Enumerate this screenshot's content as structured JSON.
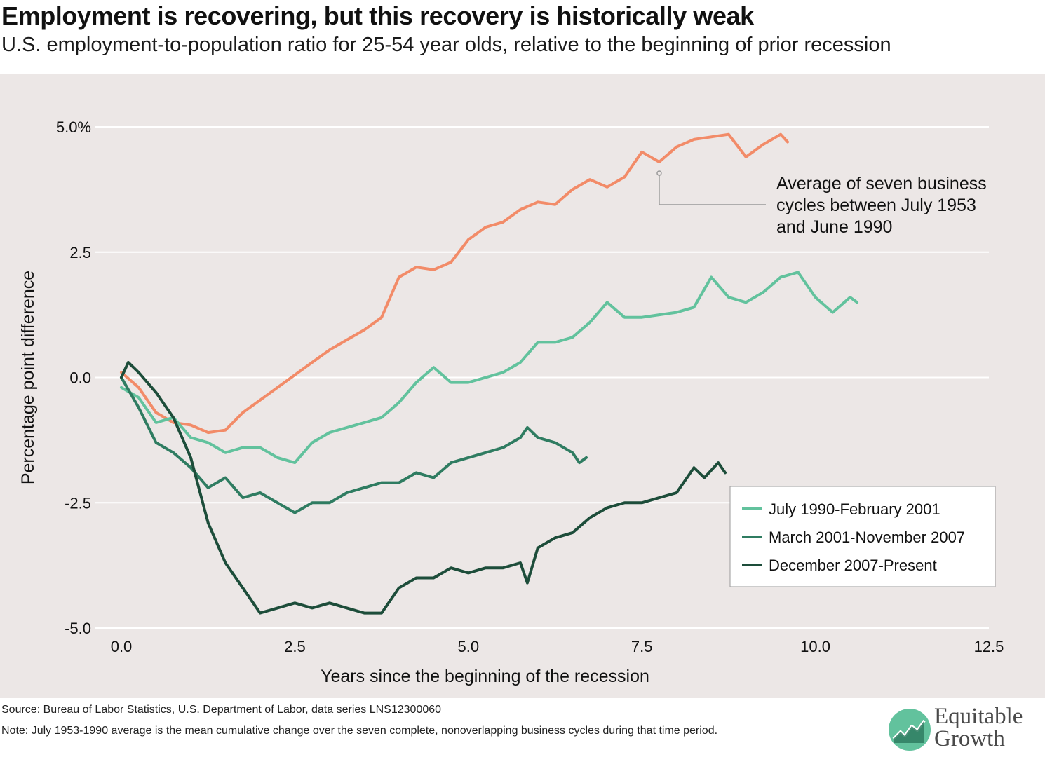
{
  "title": "Employment is recovering, but this recovery is historically weak",
  "subtitle": "U.S. employment-to-population ratio for 25-54 year olds, relative to the beginning of prior recession",
  "source": "Source: Bureau of Labor Statistics, U.S. Department of Labor, data series LNS12300060",
  "note": "Note: July 1953-1990 average is the mean cumulative change over the seven complete, nonoverlapping business cycles during that time period.",
  "logo": {
    "line1": "Equitable",
    "line2": "Growth"
  },
  "annotation": [
    "Average of seven business",
    "cycles between July 1953",
    "and June 1990"
  ],
  "colors": {
    "average": "#f28b68",
    "s1990": "#62c29d",
    "s2001": "#2f7c61",
    "s2007": "#1d4d3a",
    "panel": "#ece7e6",
    "grid": "#ffffff"
  },
  "chart_data": {
    "type": "line",
    "xlabel": "Years since the beginning of the recession",
    "ylabel": "Percentage point difference",
    "xlim": [
      0,
      12.5
    ],
    "ylim": [
      -5,
      5
    ],
    "xticks": [
      0,
      2.5,
      5,
      7.5,
      10,
      12.5
    ],
    "xtick_labels": [
      "0.0",
      "2.5",
      "5.0",
      "7.5",
      "10.0",
      "12.5"
    ],
    "yticks": [
      5,
      2.5,
      0,
      -2.5,
      -5
    ],
    "ytick_labels": [
      "5.0%",
      "2.5",
      "0.0",
      "-2.5",
      "-5.0"
    ],
    "grid": "horizontal",
    "legend_position": "bottom-right",
    "series": [
      {
        "key": "average",
        "x": [
          0,
          0.25,
          0.5,
          0.75,
          1.0,
          1.25,
          1.5,
          1.75,
          2.0,
          2.25,
          2.5,
          2.75,
          3.0,
          3.25,
          3.5,
          3.75,
          4.0,
          4.25,
          4.5,
          4.75,
          5.0,
          5.25,
          5.5,
          5.75,
          6.0,
          6.25,
          6.5,
          6.75,
          7.0,
          7.25,
          7.5,
          7.75,
          8.0,
          8.25,
          8.5,
          8.75,
          9.0,
          9.25,
          9.5,
          9.6
        ],
        "y": [
          0.1,
          -0.2,
          -0.7,
          -0.9,
          -0.95,
          -1.1,
          -1.05,
          -0.7,
          -0.45,
          -0.2,
          0.05,
          0.3,
          0.55,
          0.75,
          0.95,
          1.2,
          2.0,
          2.2,
          2.15,
          2.3,
          2.75,
          3.0,
          3.1,
          3.35,
          3.5,
          3.45,
          3.75,
          3.95,
          3.8,
          4.0,
          4.5,
          4.3,
          4.6,
          4.75,
          4.8,
          4.85,
          4.4,
          4.65,
          4.85,
          4.7
        ]
      },
      {
        "key": "s1990",
        "name": "July 1990-February 2001",
        "x": [
          0,
          0.25,
          0.5,
          0.75,
          1.0,
          1.25,
          1.5,
          1.75,
          2.0,
          2.25,
          2.5,
          2.75,
          3.0,
          3.25,
          3.5,
          3.75,
          4.0,
          4.25,
          4.5,
          4.75,
          5.0,
          5.25,
          5.5,
          5.75,
          6.0,
          6.25,
          6.5,
          6.75,
          7.0,
          7.25,
          7.5,
          7.75,
          8.0,
          8.25,
          8.5,
          8.75,
          9.0,
          9.25,
          9.5,
          9.75,
          10.0,
          10.25,
          10.5,
          10.6
        ],
        "y": [
          -0.2,
          -0.4,
          -0.9,
          -0.8,
          -1.2,
          -1.3,
          -1.5,
          -1.4,
          -1.4,
          -1.6,
          -1.7,
          -1.3,
          -1.1,
          -1.0,
          -0.9,
          -0.8,
          -0.5,
          -0.1,
          0.2,
          -0.1,
          -0.1,
          0.0,
          0.1,
          0.3,
          0.7,
          0.7,
          0.8,
          1.1,
          1.5,
          1.2,
          1.2,
          1.25,
          1.3,
          1.4,
          2.0,
          1.6,
          1.5,
          1.7,
          2.0,
          2.1,
          1.6,
          1.3,
          1.6,
          1.5
        ]
      },
      {
        "key": "s2001",
        "name": "March 2001-November 2007",
        "x": [
          0,
          0.25,
          0.5,
          0.75,
          1.0,
          1.25,
          1.5,
          1.75,
          2.0,
          2.25,
          2.5,
          2.75,
          3.0,
          3.25,
          3.5,
          3.75,
          4.0,
          4.25,
          4.5,
          4.75,
          5.0,
          5.25,
          5.5,
          5.75,
          5.85,
          6.0,
          6.25,
          6.5,
          6.6,
          6.7
        ],
        "y": [
          0.0,
          -0.6,
          -1.3,
          -1.5,
          -1.8,
          -2.2,
          -2.0,
          -2.4,
          -2.3,
          -2.5,
          -2.7,
          -2.5,
          -2.5,
          -2.3,
          -2.2,
          -2.1,
          -2.1,
          -1.9,
          -2.0,
          -1.7,
          -1.6,
          -1.5,
          -1.4,
          -1.2,
          -1.0,
          -1.2,
          -1.3,
          -1.5,
          -1.7,
          -1.6
        ]
      },
      {
        "key": "s2007",
        "name": "December 2007-Present",
        "x": [
          0,
          0.1,
          0.25,
          0.5,
          0.75,
          1.0,
          1.25,
          1.5,
          1.75,
          2.0,
          2.25,
          2.5,
          2.75,
          3.0,
          3.25,
          3.5,
          3.75,
          4.0,
          4.25,
          4.5,
          4.75,
          5.0,
          5.25,
          5.5,
          5.75,
          5.85,
          6.0,
          6.25,
          6.5,
          6.75,
          7.0,
          7.25,
          7.5,
          7.75,
          8.0,
          8.25,
          8.4,
          8.6,
          8.7
        ],
        "y": [
          0.0,
          0.3,
          0.1,
          -0.3,
          -0.8,
          -1.6,
          -2.9,
          -3.7,
          -4.2,
          -4.7,
          -4.6,
          -4.5,
          -4.6,
          -4.5,
          -4.6,
          -4.7,
          -4.7,
          -4.2,
          -4.0,
          -4.0,
          -3.8,
          -3.9,
          -3.8,
          -3.8,
          -3.7,
          -4.1,
          -3.4,
          -3.2,
          -3.1,
          -2.8,
          -2.6,
          -2.5,
          -2.5,
          -2.4,
          -2.3,
          -1.8,
          -2.0,
          -1.7,
          -1.9
        ]
      }
    ],
    "annotation_point": {
      "x": 7.75,
      "y": 4.3
    }
  }
}
